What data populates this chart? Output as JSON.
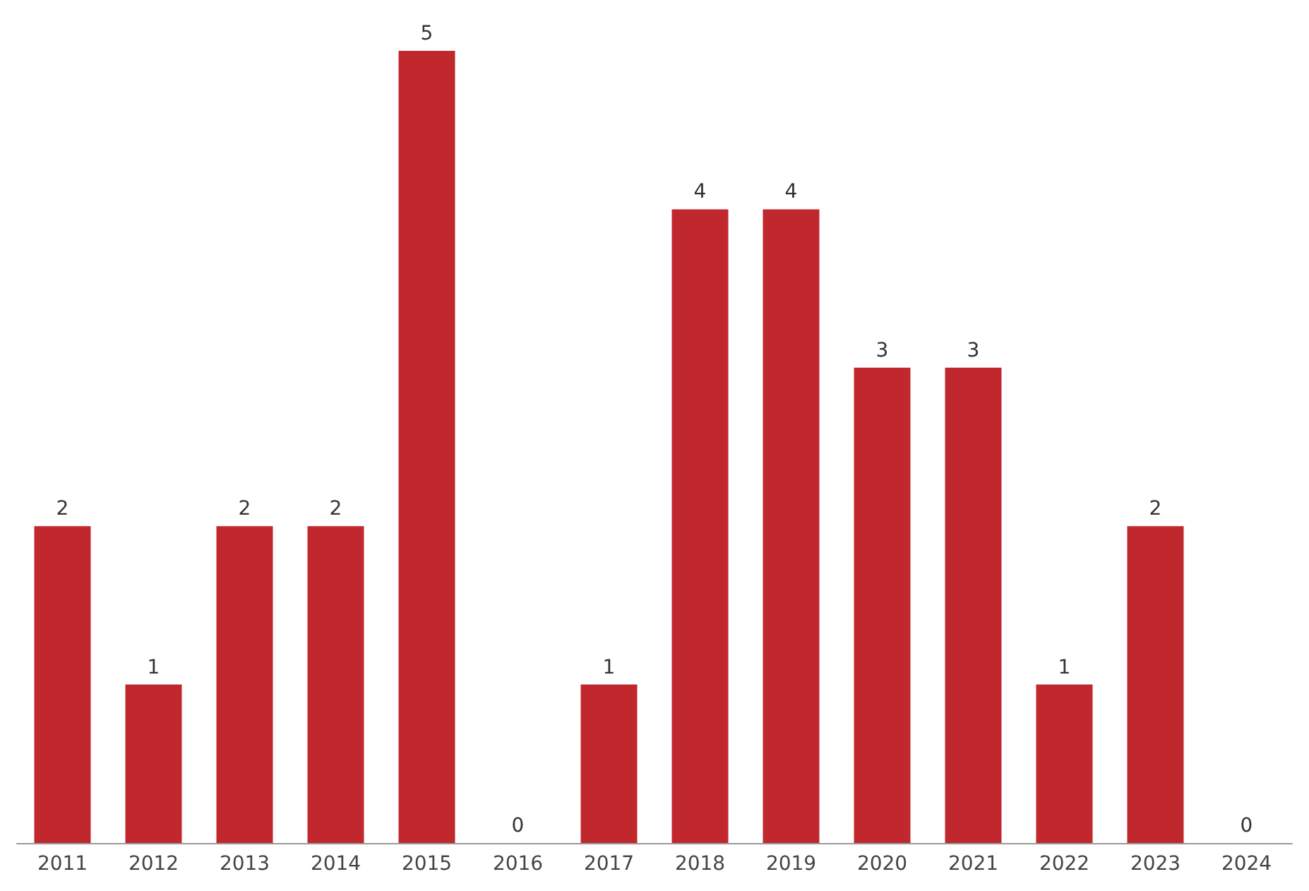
{
  "chart_data": {
    "type": "bar",
    "categories": [
      "2011",
      "2012",
      "2013",
      "2014",
      "2015",
      "2016",
      "2017",
      "2018",
      "2019",
      "2020",
      "2021",
      "2022",
      "2023",
      "2024"
    ],
    "values": [
      2,
      1,
      2,
      2,
      5,
      0,
      1,
      4,
      4,
      3,
      3,
      1,
      2,
      0
    ],
    "color": "#c0282d",
    "data_labels": true
  }
}
